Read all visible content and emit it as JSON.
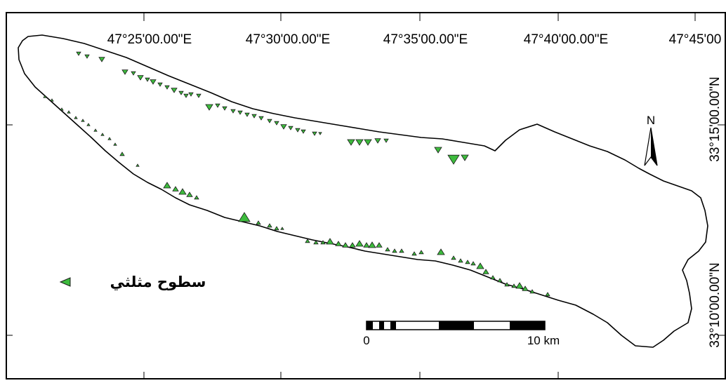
{
  "map": {
    "graticule": {
      "lon_labels": [
        "47°25'00.00\"E",
        "47°30'00.00\"E",
        "47°35'00.00\"E",
        "47°40'00.00\"E",
        "47°45'00"
      ],
      "lat_labels": [
        "33°15'00.00\"N",
        "33°10'00.00\"N"
      ]
    },
    "north_arrow": {
      "label": "N"
    },
    "legend": {
      "symbol": "green-triangle",
      "label": "سطوح مثلثي"
    },
    "scale_bar": {
      "start_label": "0",
      "end_label": "10 km"
    },
    "colors": {
      "triangle_fill": "#3dbb3d",
      "triangle_stroke": "#1a1a1a",
      "outline": "#000000"
    }
  }
}
